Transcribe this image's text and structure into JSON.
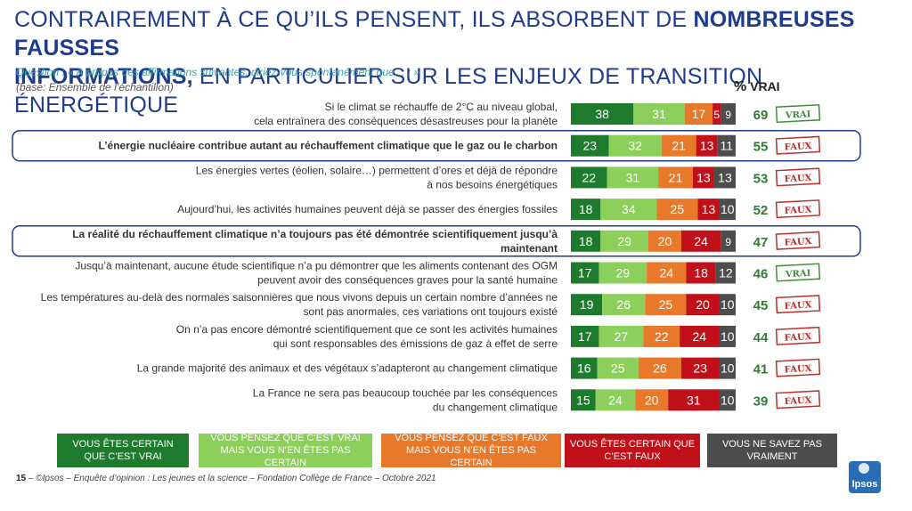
{
  "title": {
    "part1": "Contrairement à ce qu’ils pensent, ils absorbent de",
    "bold1": "nombreuses fausses",
    "bold2": "informations,",
    "part2": "en particulier sur les enjeux de transition énergétique"
  },
  "question": "Question : « A propos des affirmations suivantes, diriez-vous spontanément que… : »",
  "base": "(base: Ensemble de l’échantillon)",
  "pct_header": {
    "symbol": "%",
    "label": "VRAI"
  },
  "colors": {
    "certain_true": "#1e7b2e",
    "probably_true": "#8ccf5a",
    "probably_false": "#e8792a",
    "certain_false": "#c0111b",
    "dont_know": "#4d4d4d",
    "pct_text": "#2e7d32",
    "stamp_true": "#3f8f3a",
    "stamp_false": "#b8322e",
    "highlight_border": "#1f3c8c"
  },
  "chart_data": {
    "type": "stacked-bar-horizontal",
    "title": "Contrairement à ce qu’ils pensent, ils absorbent de nombreuses fausses informations, en particulier sur les enjeux de transition énergétique",
    "series_names": [
      "Vous êtes certain que c’est vrai",
      "Vous pensez que c’est vrai mais vous n’en êtes pas certain",
      "Vous pensez que c’est faux mais vous n’en êtes pas certain",
      "Vous êtes certain que c’est faux",
      "Vous ne savez pas vraiment"
    ],
    "rows": [
      {
        "lines": [
          "Si le climat se réchauffe de 2°C au niveau global,",
          "cela entraînera des conséquences désastreuses pour la planète"
        ],
        "values": [
          38,
          31,
          17,
          5,
          9
        ],
        "pct_vrai": 69,
        "verdict": "VRAI",
        "highlight": false
      },
      {
        "lines": [
          "L’énergie nucléaire contribue autant au réchauffement climatique que le gaz ou le charbon"
        ],
        "values": [
          23,
          32,
          21,
          13,
          11
        ],
        "pct_vrai": 55,
        "verdict": "FAUX",
        "highlight": true
      },
      {
        "lines": [
          "Les énergies vertes (éolien, solaire…) permettent d’ores et déjà de répondre",
          "à nos besoins énergétiques"
        ],
        "values": [
          22,
          31,
          21,
          13,
          13
        ],
        "pct_vrai": 53,
        "verdict": "FAUX",
        "highlight": false
      },
      {
        "lines": [
          "Aujourd’hui, les activités humaines peuvent déjà se passer des énergies fossiles"
        ],
        "values": [
          18,
          34,
          25,
          13,
          10
        ],
        "pct_vrai": 52,
        "verdict": "FAUX",
        "highlight": false
      },
      {
        "lines": [
          "La réalité du réchauffement climatique n’a toujours pas été démontrée scientifiquement jusqu’à",
          "maintenant"
        ],
        "values": [
          18,
          29,
          20,
          24,
          9
        ],
        "pct_vrai": 47,
        "verdict": "FAUX",
        "highlight": true
      },
      {
        "lines": [
          "Jusqu’à maintenant, aucune étude scientifique n’a pu démontrer que les aliments contenant des OGM",
          "peuvent avoir des conséquences graves pour la santé humaine"
        ],
        "values": [
          17,
          29,
          24,
          18,
          12
        ],
        "pct_vrai": 46,
        "verdict": "VRAI",
        "highlight": false
      },
      {
        "lines": [
          "Les températures au-delà des normales saisonnières que nous vivons depuis un certain nombre d’années ne",
          "sont pas anormales, ces variations ont toujours existé"
        ],
        "values": [
          19,
          26,
          25,
          20,
          10
        ],
        "pct_vrai": 45,
        "verdict": "FAUX",
        "highlight": false
      },
      {
        "lines": [
          "On n’a pas encore démontré scientifiquement que ce sont les activités humaines",
          "qui sont responsables des émissions de gaz à effet de serre"
        ],
        "values": [
          17,
          27,
          22,
          24,
          10
        ],
        "pct_vrai": 44,
        "verdict": "FAUX",
        "highlight": false
      },
      {
        "lines": [
          "La grande majorité des animaux et des végétaux s’adapteront au changement climatique"
        ],
        "values": [
          16,
          25,
          26,
          23,
          10
        ],
        "pct_vrai": 41,
        "verdict": "FAUX",
        "highlight": false
      },
      {
        "lines": [
          "La France ne sera pas beaucoup touchée par les conséquences",
          "du changement climatique"
        ],
        "values": [
          15,
          24,
          20,
          31,
          10
        ],
        "pct_vrai": 39,
        "verdict": "FAUX",
        "highlight": false
      }
    ]
  },
  "legend": {
    "certain_true": "Vous êtes certain que c’est vrai",
    "probably_true": "Vous pensez que c’est vrai mais vous n’en êtes pas certain",
    "probably_false": "Vous pensez que c’est faux mais vous n’en êtes pas certain",
    "certain_false": "Vous êtes certain que c’est faux",
    "dont_know": "Vous ne savez pas vraiment"
  },
  "footer": {
    "page_number": "15",
    "dash": "–",
    "text": "©Ipsos – Enquête d’opinion : Les jeunes et la science – Fondation Collège de France – Octobre 2021"
  },
  "logo": {
    "text": "Ipsos",
    "icon": "ipsos-logo-icon"
  }
}
